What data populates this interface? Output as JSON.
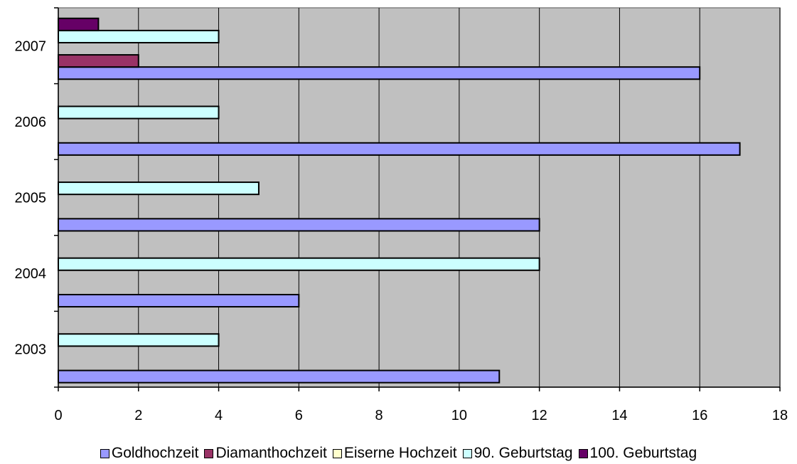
{
  "chart_data": {
    "type": "bar",
    "orientation": "horizontal",
    "categories": [
      "2003",
      "2004",
      "2005",
      "2006",
      "2007"
    ],
    "series": [
      {
        "name": "Goldhochzeit",
        "color": "#9999ff",
        "values": [
          11,
          6,
          12,
          17,
          16
        ]
      },
      {
        "name": "Diamanthochzeit",
        "color": "#993366",
        "values": [
          0,
          0,
          0,
          0,
          2
        ]
      },
      {
        "name": "Eiserne Hochzeit",
        "color": "#ffffcc",
        "values": [
          0,
          0,
          0,
          0,
          0
        ]
      },
      {
        "name": "90. Geburtstag",
        "color": "#ccffff",
        "values": [
          4,
          12,
          5,
          4,
          4
        ]
      },
      {
        "name": "100. Geburtstag",
        "color": "#660066",
        "values": [
          0,
          0,
          0,
          0,
          1
        ]
      }
    ],
    "xlim": [
      0,
      18
    ],
    "xticks": [
      "0",
      "2",
      "4",
      "6",
      "8",
      "10",
      "12",
      "14",
      "16",
      "18"
    ],
    "grid": true,
    "plot_background": "#c0c0c0",
    "legend_position": "bottom",
    "title": "",
    "xlabel": "",
    "ylabel": ""
  }
}
